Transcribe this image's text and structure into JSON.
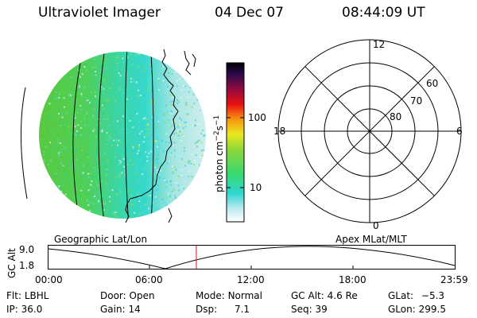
{
  "header": {
    "instrument": "Ultraviolet Imager",
    "date": "04 Dec 07",
    "time": "08:44:09 UT"
  },
  "colorbar": {
    "unit_label": "photon cm",
    "unit_exp1": "−2",
    "unit_s": "s",
    "unit_exp2": "−1",
    "tick_100": "100",
    "tick_10": "10"
  },
  "polar_plot": {
    "label_top": "12",
    "label_bottom": "0",
    "label_left": "18",
    "label_right": "6",
    "ring_60": "60",
    "ring_70": "70",
    "ring_80": "80"
  },
  "timeline": {
    "left_label": "Geographic Lat/Lon",
    "right_label": "Apex MLat/MLT",
    "axis_label": "GC Alt",
    "y_top": "9.0",
    "y_bottom": "1.8",
    "x_ticks": [
      "00:00",
      "06:00",
      "12:00",
      "18:00",
      "23:59"
    ],
    "current_time_fraction": 0.3639
  },
  "status": {
    "filter_label": "Flt:",
    "filter_value": "LBHL",
    "ip_label": "IP:",
    "ip_value": "36.0",
    "door_label": "Door:",
    "door_value": "Open",
    "gain_label": "Gain:",
    "gain_value": "14",
    "mode_label": "Mode:",
    "mode_value": "Normal",
    "dsp_label": "Dsp:",
    "dsp_value": "7.1",
    "gcalt_label": "GC Alt:",
    "gcalt_value": "4.6 Re",
    "seq_label": "Seq:",
    "seq_value": "39",
    "glat_label": "GLat:",
    "glat_value": "−5.3",
    "glon_label": "GLon:",
    "glon_value": "299.5"
  },
  "colors": {
    "earth_green": "#55cc3a",
    "earth_cyan": "#33d8c8",
    "earth_light": "#c4ecec",
    "marker_red": "#dd1111"
  }
}
